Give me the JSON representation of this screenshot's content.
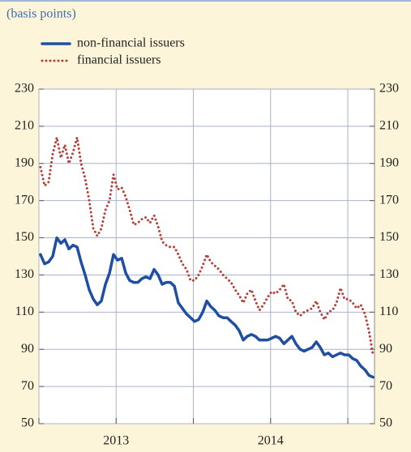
{
  "chart_data": {
    "type": "line",
    "subtitle": "(basis points)",
    "x": [
      2013.01,
      2013.037,
      2013.063,
      2013.089,
      2013.116,
      2013.142,
      2013.168,
      2013.194,
      2013.221,
      2013.247,
      2013.273,
      2013.299,
      2013.326,
      2013.352,
      2013.378,
      2013.404,
      2013.431,
      2013.457,
      2013.483,
      2013.509,
      2013.536,
      2013.562,
      2013.588,
      2013.614,
      2013.641,
      2013.667,
      2013.693,
      2013.719,
      2013.746,
      2013.772,
      2013.798,
      2013.824,
      2013.851,
      2013.877,
      2013.903,
      2013.929,
      2013.956,
      2013.982,
      2014.008,
      2014.034,
      2014.061,
      2014.087,
      2014.113,
      2014.139,
      2014.166,
      2014.192,
      2014.218,
      2014.244,
      2014.271,
      2014.297,
      2014.323,
      2014.349,
      2014.376,
      2014.402,
      2014.428,
      2014.454,
      2014.481,
      2014.507,
      2014.533,
      2014.559,
      2014.586,
      2014.612,
      2014.638,
      2014.664,
      2014.691,
      2014.717,
      2014.743,
      2014.769,
      2014.796,
      2014.822,
      2014.848,
      2014.874,
      2014.901,
      2014.927,
      2014.953,
      2014.979,
      2015.006,
      2015.032,
      2015.058,
      2015.084,
      2015.111,
      2015.137,
      2015.163
    ],
    "series": [
      {
        "name": "non-financial issuers",
        "color": "#1f4fa3",
        "style": "solid",
        "values": [
          141,
          136,
          137,
          140,
          150,
          147,
          149,
          144,
          146,
          145,
          137,
          130,
          122,
          117,
          114,
          116,
          125,
          131,
          141,
          138,
          139,
          131,
          127,
          126,
          126,
          128,
          129,
          128,
          133,
          130,
          125,
          126,
          126,
          124,
          115,
          112,
          109,
          107,
          105,
          106,
          110,
          116,
          113,
          111,
          108,
          107,
          107,
          105,
          103,
          100,
          95,
          97,
          98,
          97,
          95,
          95,
          95,
          96,
          97,
          96,
          93,
          95,
          97,
          93,
          90,
          89,
          90,
          91,
          94,
          91,
          87,
          88,
          86,
          87,
          88,
          87,
          87,
          85,
          84,
          81,
          79,
          76,
          75
        ]
      },
      {
        "name": "financial issuers",
        "color": "#b5413a",
        "style": "dotted",
        "values": [
          188,
          178,
          180,
          195,
          204,
          193,
          200,
          190,
          196,
          204,
          190,
          182,
          170,
          155,
          151,
          155,
          165,
          170,
          184,
          176,
          177,
          172,
          165,
          157,
          158,
          160,
          161,
          158,
          162,
          156,
          148,
          146,
          145,
          145,
          141,
          136,
          133,
          127,
          127,
          130,
          135,
          141,
          137,
          135,
          133,
          130,
          128,
          126,
          122,
          119,
          115,
          120,
          122,
          116,
          111,
          114,
          118,
          121,
          120,
          122,
          125,
          117,
          116,
          110,
          108,
          110,
          111,
          112,
          116,
          110,
          106,
          110,
          111,
          115,
          123,
          117,
          117,
          115,
          112,
          114,
          109,
          100,
          87
        ]
      }
    ],
    "xlim": [
      2013,
      2015.173
    ],
    "xticks": [
      {
        "value": 2013.5,
        "label": "2013"
      },
      {
        "value": 2014.5,
        "label": "2014"
      }
    ],
    "xgrid": [
      2013,
      2013.5,
      2014,
      2014.5,
      2015
    ],
    "ylim": [
      50,
      230
    ],
    "yticks": [
      50,
      70,
      90,
      110,
      130,
      150,
      170,
      190,
      210,
      230
    ],
    "grid": true,
    "legend": "top-left"
  }
}
